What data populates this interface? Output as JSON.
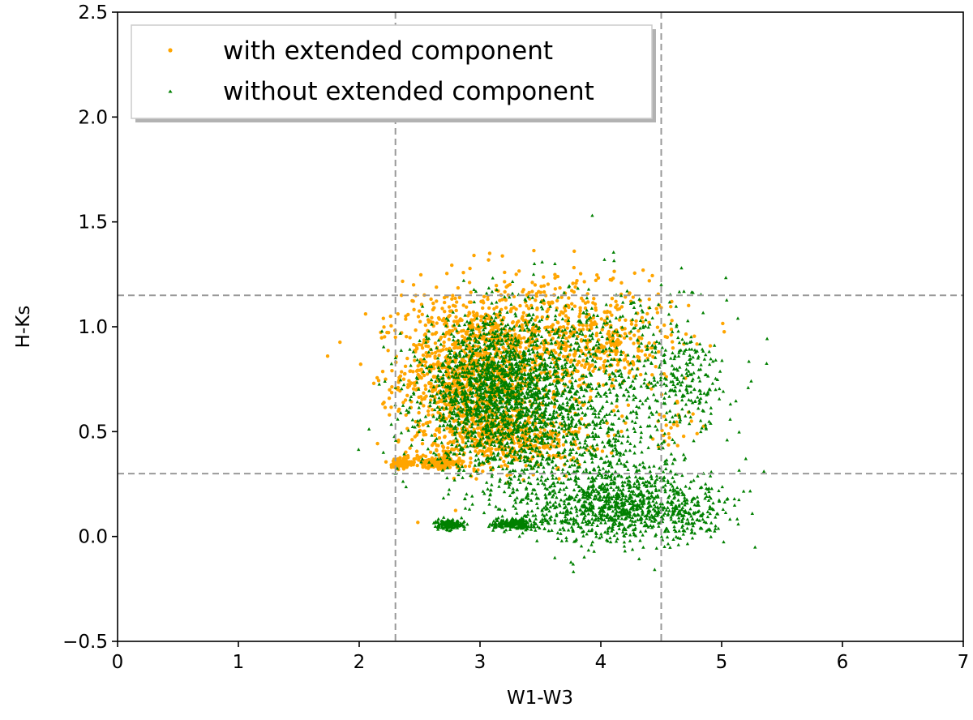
{
  "chart_data": {
    "type": "scatter",
    "title": "",
    "xlabel": "W1-W3",
    "ylabel": "H-Ks",
    "xlim": [
      0,
      7
    ],
    "ylim": [
      -0.5,
      2.5
    ],
    "xticks": [
      0,
      1,
      2,
      3,
      4,
      5,
      6,
      7
    ],
    "yticks": [
      -0.5,
      0.0,
      0.5,
      1.0,
      1.5,
      2.0,
      2.5
    ],
    "xtick_labels": [
      "0",
      "1",
      "2",
      "3",
      "4",
      "5",
      "6",
      "7"
    ],
    "ytick_labels": [
      "−0.5",
      "0.0",
      "0.5",
      "1.0",
      "1.5",
      "2.0",
      "2.5"
    ],
    "grid": false,
    "legend_position": "top-left",
    "reference_lines": {
      "vertical": [
        2.3,
        4.5
      ],
      "horizontal": [
        0.3,
        1.15
      ],
      "style": "dashed",
      "color": "#999999"
    },
    "series": [
      {
        "name": "with extended component",
        "color": "#ffa500",
        "marker": "circle",
        "clusters": [
          {
            "cx": 2.95,
            "cy": 0.78,
            "sx": 0.3,
            "sy": 0.17,
            "n": 1200
          },
          {
            "cx": 3.9,
            "cy": 0.92,
            "sx": 0.35,
            "sy": 0.13,
            "n": 450
          },
          {
            "cx": 3.2,
            "cy": 0.46,
            "sx": 0.35,
            "sy": 0.07,
            "n": 450
          },
          {
            "cx": 3.45,
            "cy": 1.1,
            "sx": 0.6,
            "sy": 0.1,
            "n": 160
          },
          {
            "cx": 2.35,
            "cy": 0.35,
            "sx": 0.04,
            "sy": 0.012,
            "n": 130
          },
          {
            "cx": 2.65,
            "cy": 0.35,
            "sx": 0.09,
            "sy": 0.012,
            "n": 200
          },
          {
            "cx": 4.6,
            "cy": 0.55,
            "sx": 0.12,
            "sy": 0.06,
            "n": 25
          }
        ],
        "points": [
          [
            2.25,
            0.58
          ],
          [
            2.2,
            1.04
          ],
          [
            2.26,
            1.05
          ],
          [
            2.3,
            0.95
          ],
          [
            2.35,
            1.15
          ],
          [
            3.78,
            1.36
          ],
          [
            3.08,
            1.35
          ],
          [
            2.95,
            1.34
          ],
          [
            4.35,
            1.27
          ],
          [
            4.4,
            1.02
          ],
          [
            4.55,
            0.95
          ],
          [
            4.65,
            0.57
          ],
          [
            4.75,
            0.55
          ],
          [
            2.45,
            1.2
          ],
          [
            3.3,
            1.25
          ]
        ]
      },
      {
        "name": "without extended component",
        "color": "#008000",
        "marker": "triangle",
        "clusters": [
          {
            "cx": 3.15,
            "cy": 0.68,
            "sx": 0.32,
            "sy": 0.18,
            "n": 1800
          },
          {
            "cx": 3.85,
            "cy": 0.48,
            "sx": 0.4,
            "sy": 0.15,
            "n": 500
          },
          {
            "cx": 4.05,
            "cy": 0.15,
            "sx": 0.4,
            "sy": 0.09,
            "n": 900
          },
          {
            "cx": 4.1,
            "cy": 0.85,
            "sx": 0.4,
            "sy": 0.18,
            "n": 400
          },
          {
            "cx": 4.75,
            "cy": 0.75,
            "sx": 0.15,
            "sy": 0.12,
            "n": 150
          },
          {
            "cx": 4.6,
            "cy": 0.12,
            "sx": 0.25,
            "sy": 0.06,
            "n": 200
          },
          {
            "cx": 2.75,
            "cy": 0.055,
            "sx": 0.06,
            "sy": 0.012,
            "n": 150
          },
          {
            "cx": 3.28,
            "cy": 0.06,
            "sx": 0.09,
            "sy": 0.012,
            "n": 200
          }
        ],
        "points": [
          [
            2.2,
            0.4
          ],
          [
            2.3,
            0.3
          ],
          [
            3.45,
            1.3
          ],
          [
            4.03,
            1.32
          ],
          [
            4.5,
            1.2
          ],
          [
            4.2,
            -0.07
          ],
          [
            4.95,
            0.05
          ],
          [
            5.05,
            0.18
          ],
          [
            5.2,
            0.37
          ],
          [
            5.35,
            0.31
          ],
          [
            4.95,
            0.7
          ],
          [
            4.9,
            0.82
          ],
          [
            3.62,
            1.3
          ],
          [
            4.85,
            0.3
          ],
          [
            2.65,
            0.07
          ]
        ]
      }
    ]
  }
}
